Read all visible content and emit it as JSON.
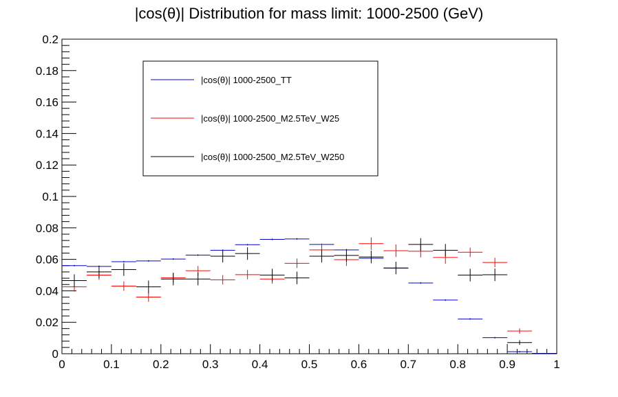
{
  "chart_data": {
    "type": "scatter",
    "title": "|cos(θ)| Distribution for mass limit: 1000-2500 (GeV)",
    "xlabel": "",
    "ylabel": "",
    "xlim": [
      0,
      1
    ],
    "ylim": [
      0,
      0.2
    ],
    "x_ticks": [
      {
        "value": 0,
        "label": "0"
      },
      {
        "value": 0.1,
        "label": "0.1"
      },
      {
        "value": 0.2,
        "label": "0.2"
      },
      {
        "value": 0.3,
        "label": "0.3"
      },
      {
        "value": 0.4,
        "label": "0.4"
      },
      {
        "value": 0.5,
        "label": "0.5"
      },
      {
        "value": 0.6,
        "label": "0.6"
      },
      {
        "value": 0.7,
        "label": "0.7"
      },
      {
        "value": 0.8,
        "label": "0.8"
      },
      {
        "value": 0.9,
        "label": "0.9"
      },
      {
        "value": 1,
        "label": "1"
      }
    ],
    "y_ticks": [
      {
        "value": 0,
        "label": "0"
      },
      {
        "value": 0.02,
        "label": "0.02"
      },
      {
        "value": 0.04,
        "label": "0.04"
      },
      {
        "value": 0.06,
        "label": "0.06"
      },
      {
        "value": 0.08,
        "label": "0.08"
      },
      {
        "value": 0.1,
        "label": "0.1"
      },
      {
        "value": 0.12,
        "label": "0.12"
      },
      {
        "value": 0.14,
        "label": "0.14"
      },
      {
        "value": 0.16,
        "label": "0.16"
      },
      {
        "value": 0.18,
        "label": "0.18"
      },
      {
        "value": 0.2,
        "label": "0.2"
      }
    ],
    "bin_width": 0.05,
    "x": [
      0.025,
      0.075,
      0.125,
      0.175,
      0.225,
      0.275,
      0.325,
      0.375,
      0.425,
      0.475,
      0.525,
      0.575,
      0.625,
      0.675,
      0.725,
      0.775,
      0.825,
      0.875,
      0.925,
      0.975
    ],
    "legend_position": "top-left",
    "series": [
      {
        "name": "|cos(θ)| 1000-2500_TT",
        "color": "#0000cc",
        "values": [
          0.056,
          0.0555,
          0.0585,
          0.059,
          0.0602,
          0.0627,
          0.0658,
          0.0693,
          0.0727,
          0.073,
          0.0695,
          0.066,
          0.0607,
          0.0545,
          0.045,
          0.0341,
          0.0221,
          0.0102,
          0.0013,
          0.0002
        ],
        "errors": [
          0.0005,
          0.0005,
          0.0005,
          0.0005,
          0.0005,
          0.0005,
          0.0005,
          0.0005,
          0.0005,
          0.0005,
          0.0005,
          0.0005,
          0.0005,
          0.0005,
          0.0005,
          0.0005,
          0.0005,
          0.0005,
          0.0005,
          0.0003
        ]
      },
      {
        "name": "|cos(θ)| 1000-2500_M2.5TeV_W25",
        "color": "#ff0000",
        "values": [
          0.0425,
          0.05,
          0.043,
          0.036,
          0.0483,
          0.0528,
          0.047,
          0.0503,
          0.0475,
          0.0575,
          0.066,
          0.0598,
          0.07,
          0.0655,
          0.0652,
          0.0612,
          0.0645,
          0.058,
          0.0144,
          0.0
        ],
        "errors": [
          0.003,
          0.003,
          0.003,
          0.003,
          0.003,
          0.003,
          0.003,
          0.003,
          0.003,
          0.003,
          0.004,
          0.004,
          0.004,
          0.004,
          0.004,
          0.004,
          0.003,
          0.003,
          0.0017,
          0.0
        ]
      },
      {
        "name": "|cos(θ)| 1000-2500_M2.5TeV_W250",
        "color": "#000000",
        "values": [
          0.0465,
          0.052,
          0.0535,
          0.0425,
          0.0475,
          0.0475,
          0.062,
          0.0637,
          0.05,
          0.0482,
          0.062,
          0.0625,
          0.0615,
          0.0545,
          0.0695,
          0.0658,
          0.05,
          0.0502,
          0.0071,
          0.0
        ],
        "errors": [
          0.004,
          0.004,
          0.004,
          0.004,
          0.004,
          0.004,
          0.004,
          0.004,
          0.004,
          0.004,
          0.004,
          0.004,
          0.004,
          0.004,
          0.004,
          0.004,
          0.004,
          0.004,
          0.0015,
          0.0
        ]
      }
    ]
  }
}
